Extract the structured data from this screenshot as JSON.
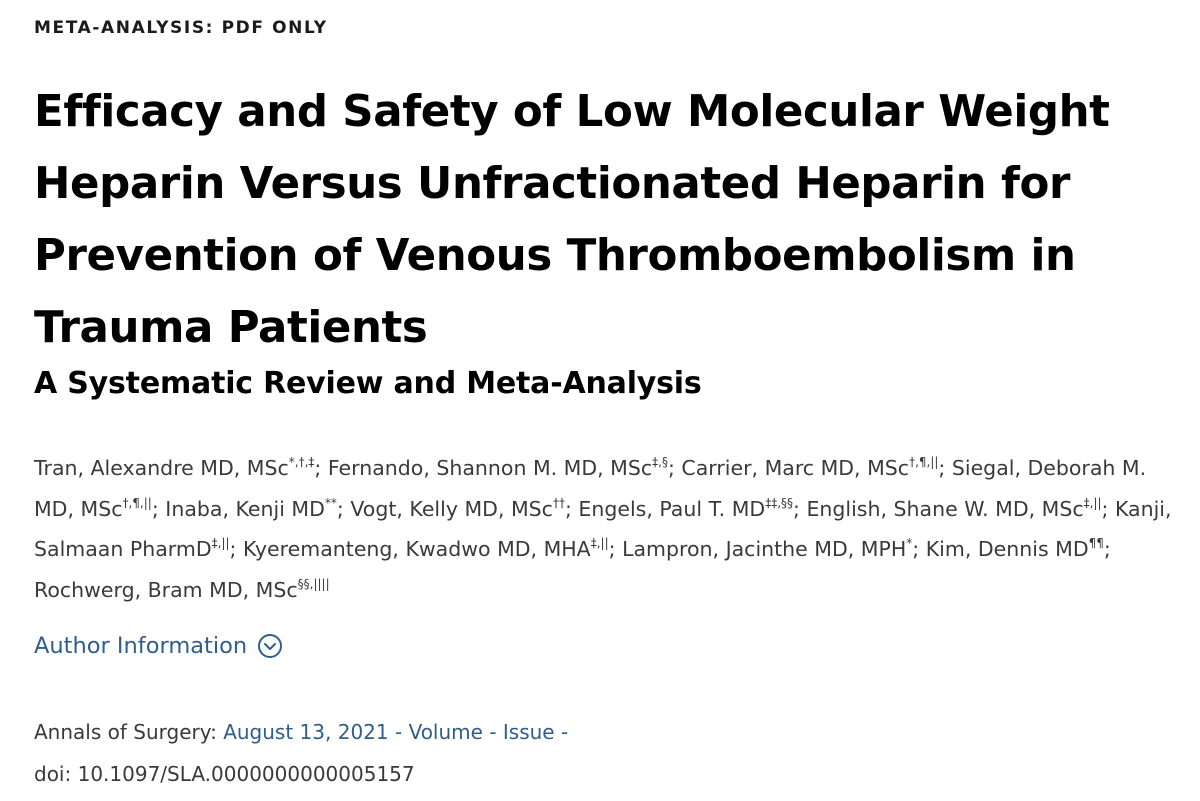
{
  "article_type": "META-ANALYSIS: PDF ONLY",
  "title": "Efficacy and Safety of Low Molecular Weight Heparin Versus Unfractionated Heparin for Prevention of Venous Thromboembolism in Trauma Patients",
  "subtitle": "A Systematic Review and Meta-Analysis",
  "authors": [
    {
      "name": "Tran, Alexandre MD, MSc",
      "sup": "*,†,‡"
    },
    {
      "name": "Fernando, Shannon M. MD, MSc",
      "sup": "‡,§"
    },
    {
      "name": "Carrier, Marc MD, MSc",
      "sup": "†,¶,||"
    },
    {
      "name": "Siegal, Deborah M. MD, MSc",
      "sup": "†,¶,||"
    },
    {
      "name": "Inaba, Kenji MD",
      "sup": "**"
    },
    {
      "name": "Vogt, Kelly MD, MSc",
      "sup": "††"
    },
    {
      "name": "Engels, Paul T. MD",
      "sup": "‡‡,§§"
    },
    {
      "name": "English, Shane W. MD, MSc",
      "sup": "‡,||"
    },
    {
      "name": "Kanji, Salmaan PharmD",
      "sup": "‡,||"
    },
    {
      "name": "Kyeremanteng, Kwadwo MD, MHA",
      "sup": "‡,||"
    },
    {
      "name": "Lampron, Jacinthe MD, MPH",
      "sup": "*"
    },
    {
      "name": "Kim, Dennis MD",
      "sup": "¶¶"
    },
    {
      "name": "Rochwerg, Bram MD, MSc",
      "sup": "§§,||||"
    }
  ],
  "author_info_label": "Author Information",
  "author_info_icon": "chevron-down-circle-icon",
  "citation": {
    "journal_label": "Annals of Surgery:",
    "date": "August 13, 2021",
    "separator": "-",
    "volume": "Volume",
    "issue": "Issue",
    "doi_label": "doi:",
    "doi": "10.1097/SLA.0000000000005157"
  },
  "colors": {
    "link": "#2f5e8c",
    "text": "#3a3a3a",
    "heading": "#000000"
  }
}
